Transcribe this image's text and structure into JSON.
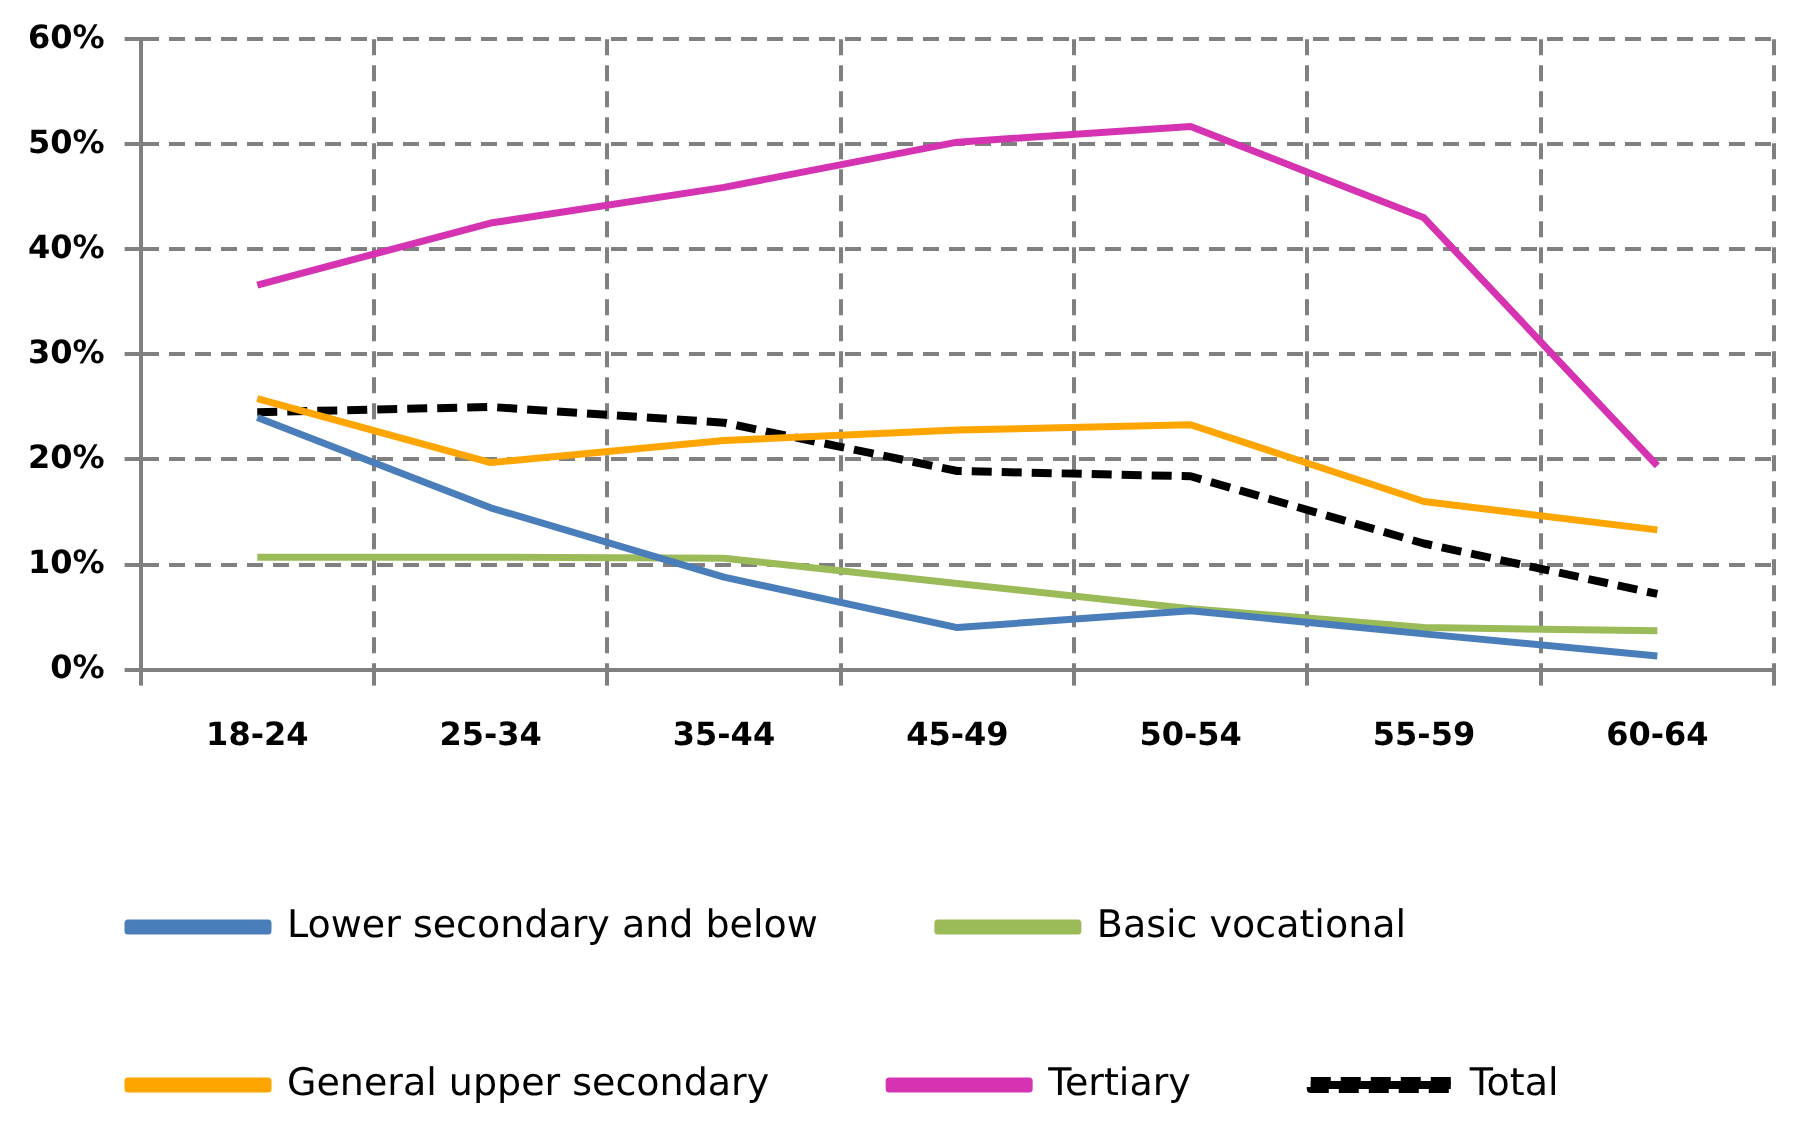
{
  "chart_data": {
    "type": "line",
    "categories": [
      "18-24",
      "25-34",
      "35-44",
      "45-49",
      "50-54",
      "55-59",
      "60-64"
    ],
    "series": [
      {
        "name": "Lower secondary and below",
        "color": "#4a7ebb",
        "values": [
          24,
          15.4,
          8.8,
          4,
          5.6,
          3.4,
          1.3
        ]
      },
      {
        "name": "Basic vocational",
        "color": "#9bbb59",
        "values": [
          10.7,
          10.7,
          10.6,
          8.2,
          5.8,
          4,
          3.7
        ]
      },
      {
        "name": "General upper secondary",
        "color": "#ffa500",
        "values": [
          25.8,
          19.7,
          21.8,
          22.8,
          23.3,
          16,
          13.3
        ]
      },
      {
        "name": "Tertiary",
        "color": "#d633b3",
        "values": [
          36.6,
          42.5,
          45.9,
          50.2,
          51.7,
          43,
          19.4
        ]
      },
      {
        "name": "Total",
        "color": "#000000",
        "line_style": "dashed",
        "values": [
          24.5,
          25,
          23.5,
          18.9,
          18.4,
          12,
          7.2
        ]
      }
    ],
    "ylim": [
      0,
      60
    ],
    "yticks": [
      {
        "value": 0,
        "label": "0%"
      },
      {
        "value": 10,
        "label": "10%"
      },
      {
        "value": 20,
        "label": "20%"
      },
      {
        "value": 30,
        "label": "30%"
      },
      {
        "value": 40,
        "label": "40%"
      },
      {
        "value": 50,
        "label": "50%"
      },
      {
        "value": 60,
        "label": "60%"
      }
    ],
    "grid": true,
    "legend": "bottom",
    "marker": "none",
    "line_style": "solid"
  }
}
